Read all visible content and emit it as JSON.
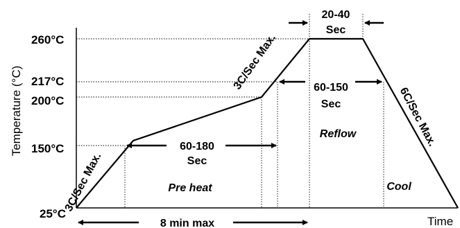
{
  "chart_data": {
    "type": "line",
    "title": "",
    "xlabel": "Time",
    "ylabel": "Temperature (°C)",
    "ylim": [
      25,
      260
    ],
    "y_ticks": [
      {
        "value": 25,
        "label": "25°C"
      },
      {
        "value": 150,
        "label": "150°C"
      },
      {
        "value": 200,
        "label": "200°C"
      },
      {
        "value": 217,
        "label": "217°C"
      },
      {
        "value": 260,
        "label": "260°C"
      }
    ],
    "series": [
      {
        "points": [
          {
            "x": 0,
            "y": 25
          },
          {
            "x": 0.8,
            "y": 155
          },
          {
            "x": 2.8,
            "y": 200
          },
          {
            "x": 3.4,
            "y": 260
          },
          {
            "x": 3.85,
            "y": 260
          },
          {
            "x": 5.05,
            "y": 25
          }
        ]
      }
    ],
    "annotations": {
      "ramp_up_rate": "3C/Sec Max.",
      "ramp_to_peak_rate": "3C/Sec Max.",
      "cool_rate": "6C/Sec Max.",
      "preheat_time": "60-180",
      "preheat_time_unit": "Sec",
      "reflow_time": "60-150",
      "reflow_time_unit": "Sec",
      "peak_time": "20-40",
      "peak_time_unit": "Sec",
      "preheat_label": "Pre heat",
      "reflow_label": "Reflow",
      "cool_label": "Cool",
      "total_time": "8 min max"
    }
  }
}
